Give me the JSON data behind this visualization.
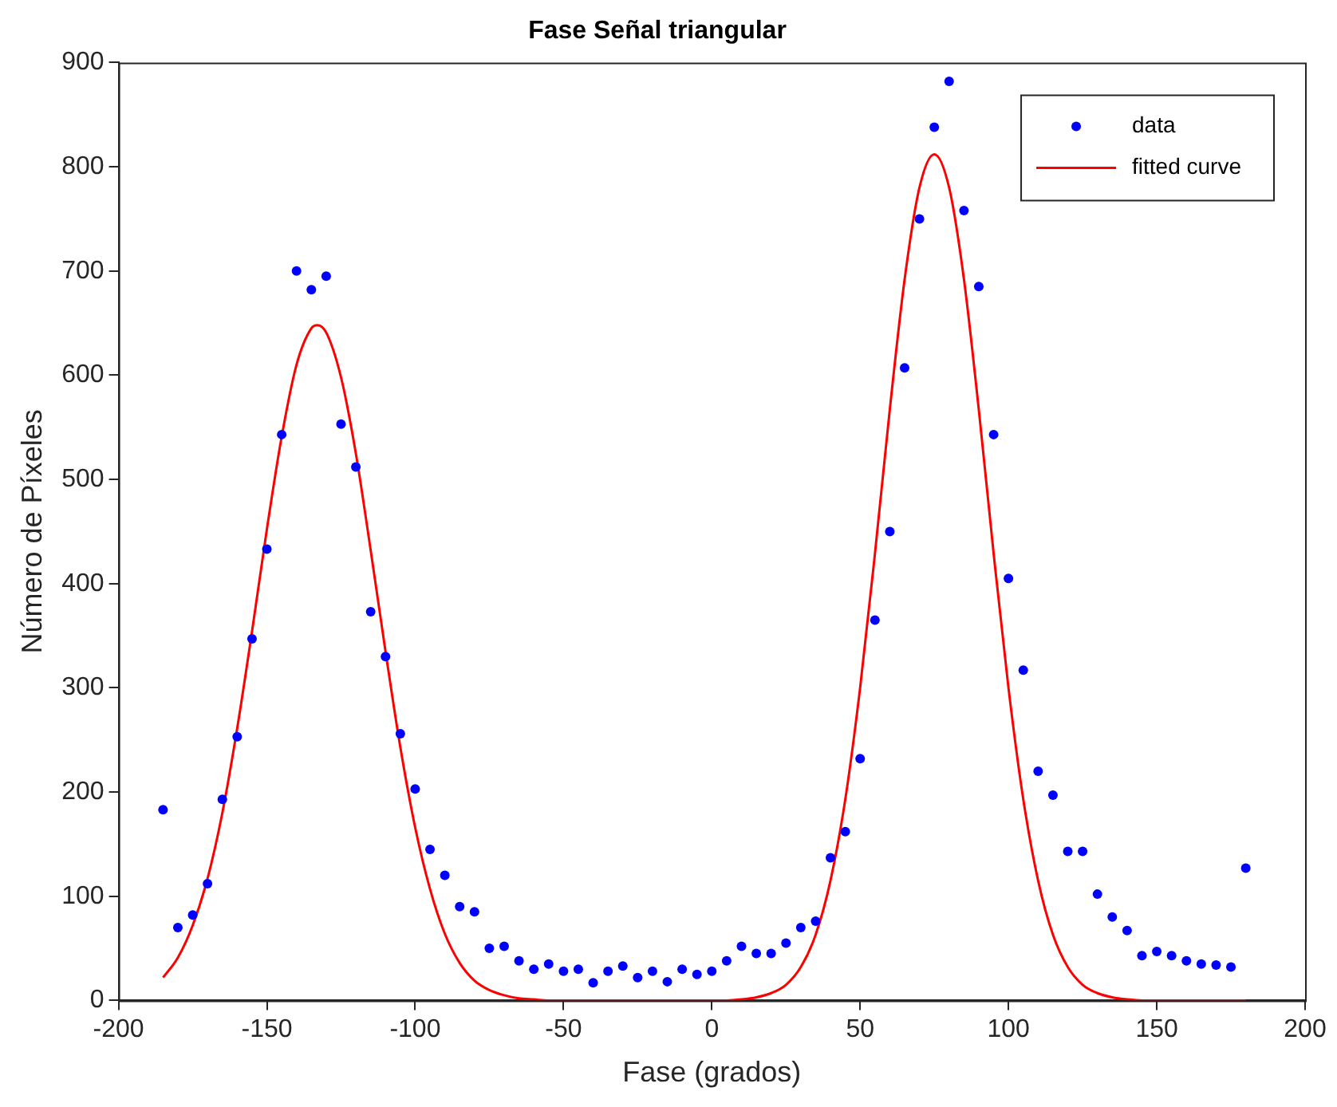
{
  "chart_data": {
    "type": "scatter",
    "title": "Fase Señal triangular",
    "xlabel": "Fase (grados)",
    "ylabel": "Número de Píxeles",
    "xlim": [
      -200,
      200
    ],
    "xticks": [
      -200,
      -150,
      -100,
      -50,
      0,
      50,
      100,
      150,
      200
    ],
    "ylim": [
      0,
      900
    ],
    "yticks": [
      0,
      100,
      200,
      300,
      400,
      500,
      600,
      700,
      800,
      900
    ],
    "grid": false,
    "legend": "top right",
    "series": [
      {
        "name": "data",
        "type": "scatter",
        "marker": "circle",
        "color": "#0000ff",
        "x": [
          -185,
          -180,
          -175,
          -170,
          -165,
          -160,
          -155,
          -150,
          -145,
          -140,
          -135,
          -130,
          -125,
          -120,
          -115,
          -110,
          -105,
          -100,
          -95,
          -90,
          -85,
          -80,
          -75,
          -70,
          -65,
          -60,
          -55,
          -50,
          -45,
          -40,
          -35,
          -30,
          -25,
          -20,
          -15,
          -10,
          -5,
          0,
          5,
          10,
          15,
          20,
          25,
          30,
          35,
          40,
          45,
          50,
          55,
          60,
          65,
          70,
          75,
          80,
          85,
          90,
          95,
          100,
          105,
          110,
          115,
          120,
          125,
          130,
          135,
          140,
          145,
          150,
          155,
          160,
          165,
          170,
          175,
          180
        ],
        "values": [
          183,
          70,
          82,
          112,
          193,
          253,
          347,
          433,
          543,
          700,
          682,
          695,
          553,
          512,
          373,
          330,
          256,
          203,
          145,
          120,
          90,
          85,
          50,
          52,
          38,
          30,
          35,
          28,
          30,
          17,
          28,
          33,
          22,
          28,
          18,
          30,
          25,
          28,
          38,
          52,
          45,
          45,
          55,
          70,
          76,
          137,
          162,
          232,
          365,
          450,
          607,
          750,
          838,
          882,
          758,
          685,
          543,
          405,
          317,
          220,
          197,
          143,
          143,
          102,
          80,
          67,
          43,
          47,
          43,
          38,
          35,
          34,
          32,
          127
        ]
      },
      {
        "name": "fitted curve",
        "type": "line",
        "marker": "none",
        "color": "#ff0000",
        "x": [
          -185,
          -180,
          -175,
          -170,
          -165,
          -160,
          -155,
          -150,
          -145,
          -140,
          -135,
          -133,
          -130,
          -125,
          -120,
          -115,
          -110,
          -105,
          -100,
          -95,
          -90,
          -85,
          -80,
          -75,
          -70,
          -65,
          -60,
          -55,
          -50,
          -45,
          -40,
          -35,
          -30,
          -25,
          -20,
          -15,
          -10,
          -5,
          0,
          5,
          10,
          15,
          20,
          25,
          30,
          35,
          40,
          45,
          50,
          55,
          60,
          65,
          70,
          75,
          80,
          85,
          90,
          95,
          100,
          105,
          110,
          115,
          120,
          125,
          130,
          135,
          140,
          145,
          150,
          155,
          160,
          165,
          170,
          175,
          180
        ],
        "values": [
          22,
          41,
          72,
          117,
          180,
          261,
          354,
          452,
          541,
          610,
          645,
          648,
          641,
          598,
          525,
          432,
          335,
          243,
          166,
          107,
          64,
          36,
          19,
          10,
          5,
          2,
          1,
          0,
          0,
          0,
          0,
          0,
          0,
          0,
          0,
          0,
          0,
          0,
          0,
          0,
          1,
          3,
          7,
          15,
          32,
          63,
          115,
          193,
          300,
          429,
          567,
          692,
          780,
          812,
          780,
          692,
          567,
          429,
          300,
          193,
          115,
          63,
          32,
          15,
          7,
          3,
          1,
          0,
          0,
          0,
          0,
          0,
          0,
          0,
          0
        ]
      }
    ]
  }
}
